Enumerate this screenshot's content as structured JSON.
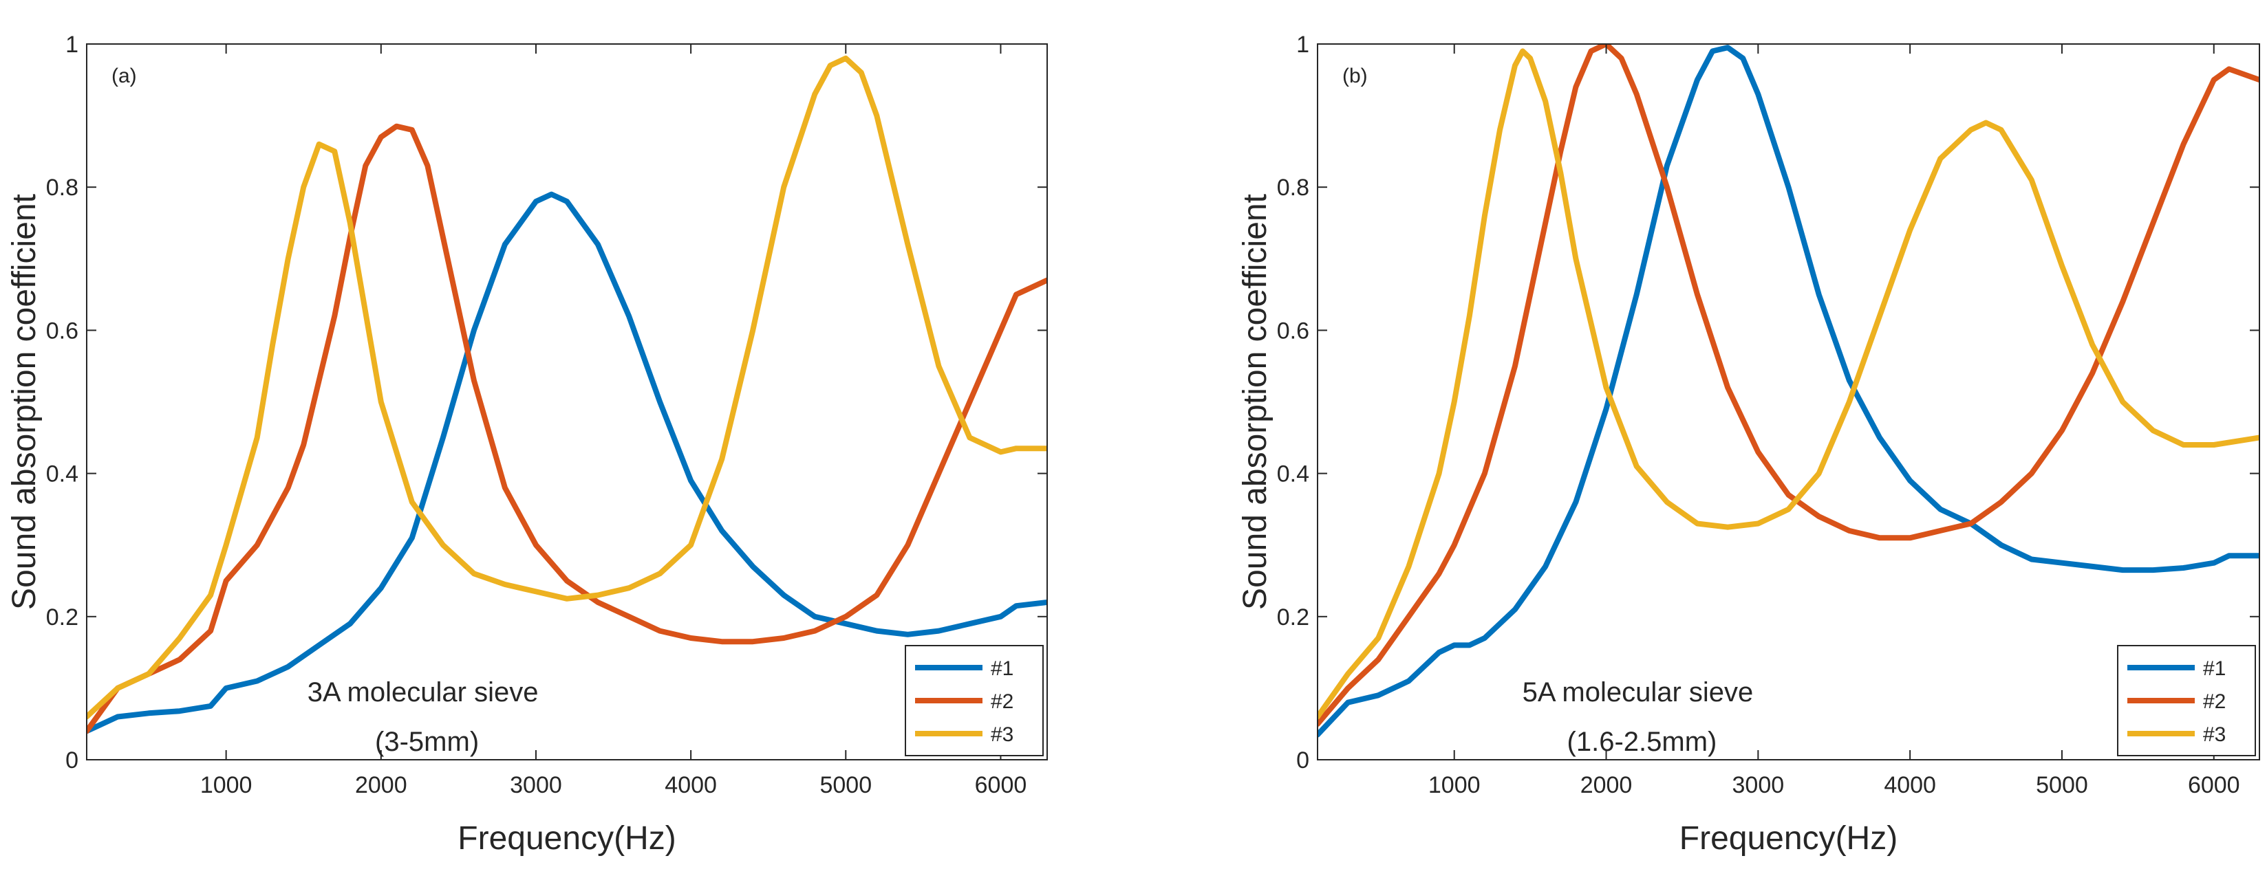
{
  "chart_data": [
    {
      "type": "line",
      "panel_label": "(a)",
      "xlabel": "Frequency(Hz)",
      "ylabel": "Sound absorption coefficient",
      "xlim": [
        100,
        6300
      ],
      "ylim": [
        0,
        1
      ],
      "xticks": [
        1000,
        2000,
        3000,
        4000,
        5000,
        6000
      ],
      "yticks": [
        0,
        0.2,
        0.4,
        0.6,
        0.8,
        1
      ],
      "ytick_labels": [
        "0",
        "0.2",
        "0.4",
        "0.6",
        "0.8",
        "1"
      ],
      "annotation_lines": [
        "3A molecular sieve",
        "(3-5mm)"
      ],
      "legend": [
        "#1",
        "#2",
        "#3"
      ],
      "legend_position": "bottom-right",
      "series": [
        {
          "name": "#1",
          "color": "#0072BD",
          "x": [
            100,
            300,
            500,
            700,
            900,
            1000,
            1200,
            1400,
            1600,
            1800,
            2000,
            2200,
            2400,
            2600,
            2800,
            3000,
            3100,
            3200,
            3400,
            3600,
            3800,
            4000,
            4200,
            4400,
            4600,
            4800,
            5000,
            5200,
            5400,
            5600,
            5800,
            6000,
            6100,
            6300
          ],
          "y": [
            0.04,
            0.06,
            0.065,
            0.068,
            0.075,
            0.1,
            0.11,
            0.13,
            0.16,
            0.19,
            0.24,
            0.31,
            0.45,
            0.6,
            0.72,
            0.78,
            0.79,
            0.78,
            0.72,
            0.62,
            0.5,
            0.39,
            0.32,
            0.27,
            0.23,
            0.2,
            0.19,
            0.18,
            0.175,
            0.18,
            0.19,
            0.2,
            0.215,
            0.22
          ]
        },
        {
          "name": "#2",
          "color": "#D95319",
          "x": [
            100,
            300,
            500,
            700,
            900,
            1000,
            1200,
            1400,
            1500,
            1600,
            1700,
            1800,
            1900,
            2000,
            2100,
            2200,
            2300,
            2400,
            2600,
            2800,
            3000,
            3200,
            3400,
            3600,
            3800,
            4000,
            4200,
            4400,
            4600,
            4800,
            5000,
            5200,
            5400,
            5600,
            5800,
            6000,
            6100,
            6300
          ],
          "y": [
            0.04,
            0.1,
            0.12,
            0.14,
            0.18,
            0.25,
            0.3,
            0.38,
            0.44,
            0.53,
            0.62,
            0.73,
            0.83,
            0.87,
            0.885,
            0.88,
            0.83,
            0.73,
            0.53,
            0.38,
            0.3,
            0.25,
            0.22,
            0.2,
            0.18,
            0.17,
            0.165,
            0.165,
            0.17,
            0.18,
            0.2,
            0.23,
            0.3,
            0.4,
            0.5,
            0.6,
            0.65,
            0.67
          ]
        },
        {
          "name": "#3",
          "color": "#EDB120",
          "x": [
            100,
            300,
            500,
            700,
            900,
            1000,
            1200,
            1300,
            1400,
            1500,
            1600,
            1700,
            1800,
            2000,
            2200,
            2400,
            2600,
            2800,
            3000,
            3200,
            3400,
            3600,
            3800,
            4000,
            4200,
            4400,
            4600,
            4800,
            4900,
            5000,
            5100,
            5200,
            5400,
            5600,
            5800,
            6000,
            6100,
            6300
          ],
          "y": [
            0.06,
            0.1,
            0.12,
            0.17,
            0.23,
            0.3,
            0.45,
            0.58,
            0.7,
            0.8,
            0.86,
            0.85,
            0.75,
            0.5,
            0.36,
            0.3,
            0.26,
            0.245,
            0.235,
            0.225,
            0.23,
            0.24,
            0.26,
            0.3,
            0.42,
            0.6,
            0.8,
            0.93,
            0.97,
            0.98,
            0.96,
            0.9,
            0.72,
            0.55,
            0.45,
            0.43,
            0.435,
            0.435
          ]
        }
      ]
    },
    {
      "type": "line",
      "panel_label": "(b)",
      "xlabel": "Frequency(Hz)",
      "ylabel": "Sound absorption coefficient",
      "xlim": [
        100,
        6300
      ],
      "ylim": [
        0,
        1
      ],
      "xticks": [
        1000,
        2000,
        3000,
        4000,
        5000,
        6000
      ],
      "yticks": [
        0,
        0.2,
        0.4,
        0.6,
        0.8,
        1
      ],
      "ytick_labels": [
        "0",
        "0.2",
        "0.4",
        "0.6",
        "0.8",
        "1"
      ],
      "annotation_lines": [
        "5A molecular sieve",
        "(1.6-2.5mm)"
      ],
      "legend": [
        "#1",
        "#2",
        "#3"
      ],
      "legend_position": "bottom-right",
      "series": [
        {
          "name": "#1",
          "color": "#0072BD",
          "x": [
            100,
            300,
            500,
            700,
            900,
            1000,
            1100,
            1200,
            1400,
            1600,
            1800,
            2000,
            2200,
            2400,
            2600,
            2700,
            2800,
            2900,
            3000,
            3200,
            3400,
            3600,
            3800,
            4000,
            4200,
            4400,
            4600,
            4800,
            5000,
            5200,
            5400,
            5600,
            5800,
            6000,
            6100,
            6300
          ],
          "y": [
            0.035,
            0.08,
            0.09,
            0.11,
            0.15,
            0.16,
            0.16,
            0.17,
            0.21,
            0.27,
            0.36,
            0.49,
            0.65,
            0.83,
            0.95,
            0.99,
            0.995,
            0.98,
            0.93,
            0.8,
            0.65,
            0.53,
            0.45,
            0.39,
            0.35,
            0.33,
            0.3,
            0.28,
            0.275,
            0.27,
            0.265,
            0.265,
            0.268,
            0.275,
            0.285,
            0.285
          ]
        },
        {
          "name": "#2",
          "color": "#D95319",
          "x": [
            100,
            300,
            500,
            700,
            900,
            1000,
            1200,
            1400,
            1600,
            1700,
            1800,
            1900,
            2000,
            2100,
            2200,
            2400,
            2600,
            2800,
            3000,
            3200,
            3400,
            3600,
            3800,
            4000,
            4200,
            4400,
            4600,
            4800,
            5000,
            5200,
            5400,
            5600,
            5800,
            6000,
            6100,
            6300
          ],
          "y": [
            0.05,
            0.1,
            0.14,
            0.2,
            0.26,
            0.3,
            0.4,
            0.55,
            0.75,
            0.85,
            0.94,
            0.99,
            1.0,
            0.98,
            0.93,
            0.8,
            0.65,
            0.52,
            0.43,
            0.37,
            0.34,
            0.32,
            0.31,
            0.31,
            0.32,
            0.33,
            0.36,
            0.4,
            0.46,
            0.54,
            0.64,
            0.75,
            0.86,
            0.95,
            0.965,
            0.95
          ]
        },
        {
          "name": "#3",
          "color": "#EDB120",
          "x": [
            100,
            300,
            500,
            700,
            900,
            1000,
            1100,
            1200,
            1300,
            1400,
            1450,
            1500,
            1600,
            1700,
            1800,
            2000,
            2200,
            2400,
            2600,
            2800,
            3000,
            3200,
            3400,
            3600,
            3800,
            4000,
            4200,
            4400,
            4500,
            4600,
            4800,
            5000,
            5200,
            5400,
            5600,
            5800,
            6000,
            6300
          ],
          "y": [
            0.06,
            0.12,
            0.17,
            0.27,
            0.4,
            0.5,
            0.62,
            0.76,
            0.88,
            0.97,
            0.99,
            0.98,
            0.92,
            0.82,
            0.7,
            0.52,
            0.41,
            0.36,
            0.33,
            0.325,
            0.33,
            0.35,
            0.4,
            0.5,
            0.62,
            0.74,
            0.84,
            0.88,
            0.89,
            0.88,
            0.81,
            0.69,
            0.58,
            0.5,
            0.46,
            0.44,
            0.44,
            0.45
          ]
        }
      ]
    }
  ]
}
